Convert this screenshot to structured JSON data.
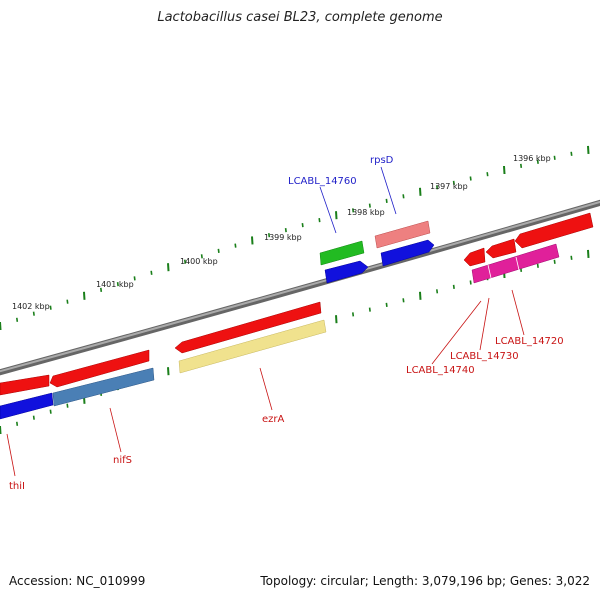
{
  "title": "Lactobacillus casei BL23, complete genome",
  "footer": {
    "accession": "Accession: NC_010999",
    "summary": "Topology: circular; Length: 3,079,196 bp; Genes: 3,022"
  },
  "colors": {
    "backbone": "#808080",
    "ticks": "#1a7f1a",
    "forward_label": "#1f1fc8",
    "reverse_label": "#c81414"
  },
  "scale_labels": [
    "1402 kbp",
    "1401 kbp",
    "1400 kbp",
    "1399 kbp",
    "1398 kbp",
    "1397 kbp",
    "1396 kbp"
  ],
  "gene_labels": {
    "lcabl_14760": "LCABL_14760",
    "rpsD": "rpsD",
    "lcabl_14740": "LCABL_14740",
    "lcabl_14730": "LCABL_14730",
    "lcabl_14720": "LCABL_14720",
    "ezrA": "ezrA",
    "nifS": "nifS",
    "thiI": "thiI"
  },
  "features": [
    {
      "name": "thiI",
      "strand": "reverse",
      "color": "#ee1111"
    },
    {
      "name": "thiI",
      "strand": "reverse",
      "color": "#1111dd"
    },
    {
      "name": "nifS",
      "strand": "reverse",
      "color": "#ee1111"
    },
    {
      "name": "nifS",
      "strand": "reverse",
      "color": "#4a7fb5"
    },
    {
      "name": "ezrA",
      "strand": "reverse",
      "color": "#ee1111"
    },
    {
      "name": "ezrA",
      "strand": "reverse",
      "color": "#f0e28e"
    },
    {
      "name": "LCABL_14760",
      "strand": "forward",
      "color": "#22bb22"
    },
    {
      "name": "LCABL_14760",
      "strand": "forward",
      "color": "#1111dd"
    },
    {
      "name": "rpsD",
      "strand": "forward",
      "color": "#ee8080"
    },
    {
      "name": "rpsD",
      "strand": "forward",
      "color": "#1111dd"
    },
    {
      "name": "LCABL_14740",
      "strand": "reverse",
      "color": "#ee1111"
    },
    {
      "name": "LCABL_14730",
      "strand": "reverse",
      "color": "#ee1111"
    },
    {
      "name": "LCABL_14720",
      "strand": "reverse",
      "color": "#ee1111"
    },
    {
      "name": "LCABL_14720",
      "strand": "reverse",
      "color": "#e0209a"
    }
  ]
}
